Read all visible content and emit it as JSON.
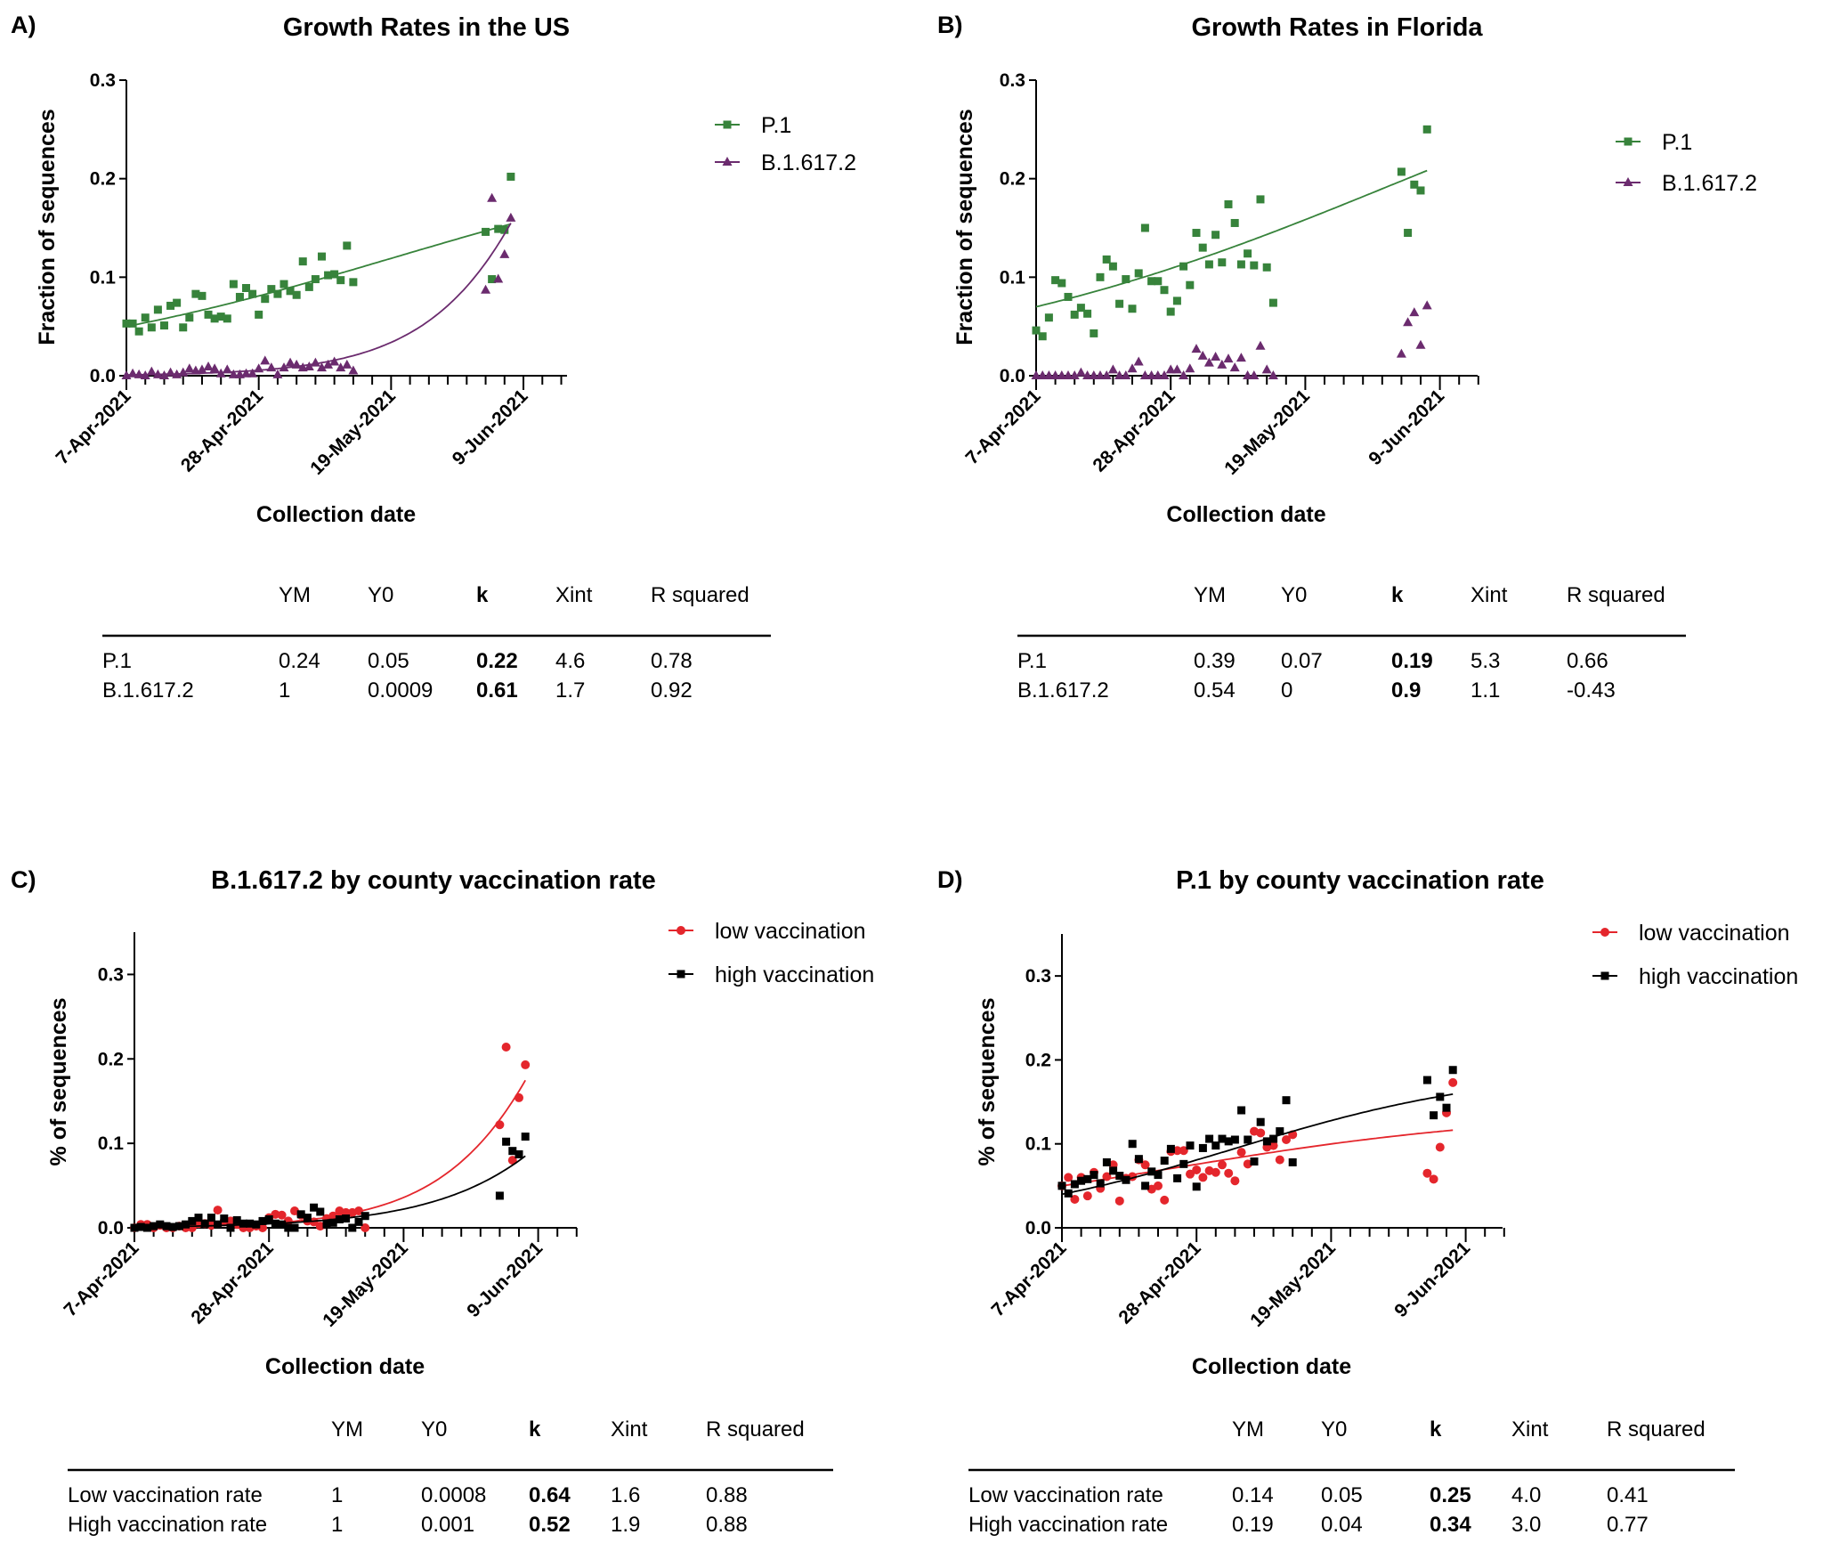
{
  "colors": {
    "P.1": "#37833b",
    "B.1.617.2": "#6b2b6e",
    "low vaccination": "#e4262c",
    "high vaccination": "#000000"
  },
  "chart_data": [
    {
      "panel_label": "A)",
      "title": "Growth Rates in the US",
      "type": "scatter",
      "xlabel": "Collection date",
      "ylabel": "Fraction of sequences",
      "x_ticks": [
        "7-Apr-2021",
        "28-Apr-2021",
        "19-May-2021",
        "9-Jun-2021"
      ],
      "y_ticks": [
        "0.0",
        "0.1",
        "0.2",
        "0.3"
      ],
      "ylim": [
        0,
        0.3
      ],
      "legend": "top-right",
      "x": [
        "2021-04-07",
        "2021-04-08",
        "2021-04-09",
        "2021-04-10",
        "2021-04-11",
        "2021-04-12",
        "2021-04-13",
        "2021-04-14",
        "2021-04-15",
        "2021-04-16",
        "2021-04-17",
        "2021-04-18",
        "2021-04-19",
        "2021-04-20",
        "2021-04-21",
        "2021-04-22",
        "2021-04-23",
        "2021-04-24",
        "2021-04-25",
        "2021-04-26",
        "2021-04-27",
        "2021-04-28",
        "2021-04-29",
        "2021-04-30",
        "2021-05-01",
        "2021-05-02",
        "2021-05-03",
        "2021-05-04",
        "2021-05-05",
        "2021-05-06",
        "2021-05-07",
        "2021-05-08",
        "2021-05-09",
        "2021-05-10",
        "2021-05-11",
        "2021-05-12",
        "2021-05-13",
        "2021-06-03",
        "2021-06-04",
        "2021-06-05",
        "2021-06-06",
        "2021-06-07"
      ],
      "series": [
        {
          "name": "P.1",
          "marker": "square",
          "fit_shown": true,
          "values": [
            0.053,
            0.053,
            0.045,
            0.059,
            0.049,
            0.067,
            0.051,
            0.071,
            0.074,
            0.049,
            0.059,
            0.083,
            0.081,
            0.062,
            0.058,
            0.06,
            0.058,
            0.093,
            0.08,
            0.089,
            0.083,
            0.062,
            0.078,
            0.088,
            0.083,
            0.093,
            0.086,
            0.082,
            0.116,
            0.09,
            0.098,
            0.121,
            0.102,
            0.103,
            0.097,
            0.132,
            0.095,
            0.146,
            0.098,
            0.149,
            0.148,
            0.202
          ]
        },
        {
          "name": "B.1.617.2",
          "marker": "triangle",
          "fit_shown": true,
          "values": [
            0,
            0.002,
            0.001,
            0,
            0.004,
            0.001,
            0,
            0.003,
            0.001,
            0.003,
            0.007,
            0.005,
            0.006,
            0.009,
            0.007,
            0.002,
            0.006,
            0.001,
            0.001,
            0.002,
            0.002,
            0.007,
            0.015,
            0.008,
            0.001,
            0.008,
            0.013,
            0.011,
            0.008,
            0.009,
            0.013,
            0.008,
            0.011,
            0.014,
            0.008,
            0.011,
            0.005,
            0.087,
            0.18,
            0.098,
            0.123,
            0.16
          ]
        }
      ],
      "table": {
        "headers": [
          "",
          "YM",
          "Y0",
          "k",
          "Xint",
          "R squared"
        ],
        "rows": [
          [
            "P.1",
            "0.24",
            "0.05",
            "0.22",
            "4.6",
            "0.78"
          ],
          [
            "B.1.617.2",
            "1",
            "0.0009",
            "0.61",
            "1.7",
            "0.92"
          ]
        ]
      }
    },
    {
      "panel_label": "B)",
      "title": "Growth Rates in Florida",
      "type": "scatter",
      "xlabel": "Collection date",
      "ylabel": "Fraction of sequences",
      "x_ticks": [
        "7-Apr-2021",
        "28-Apr-2021",
        "19-May-2021",
        "9-Jun-2021"
      ],
      "y_ticks": [
        "0.0",
        "0.1",
        "0.2",
        "0.3"
      ],
      "ylim": [
        0,
        0.3
      ],
      "legend": "top-right",
      "x": [
        "2021-04-07",
        "2021-04-08",
        "2021-04-09",
        "2021-04-10",
        "2021-04-11",
        "2021-04-12",
        "2021-04-13",
        "2021-04-14",
        "2021-04-15",
        "2021-04-16",
        "2021-04-17",
        "2021-04-18",
        "2021-04-19",
        "2021-04-20",
        "2021-04-21",
        "2021-04-22",
        "2021-04-23",
        "2021-04-24",
        "2021-04-25",
        "2021-04-26",
        "2021-04-27",
        "2021-04-28",
        "2021-04-29",
        "2021-04-30",
        "2021-05-01",
        "2021-05-02",
        "2021-05-03",
        "2021-05-04",
        "2021-05-05",
        "2021-05-06",
        "2021-05-07",
        "2021-05-08",
        "2021-05-09",
        "2021-05-10",
        "2021-05-11",
        "2021-05-12",
        "2021-05-13",
        "2021-05-14",
        "2021-06-03",
        "2021-06-04",
        "2021-06-05",
        "2021-06-06",
        "2021-06-07"
      ],
      "series": [
        {
          "name": "P.1",
          "marker": "square",
          "fit_shown": true,
          "values": [
            0.046,
            0.04,
            0.059,
            0.097,
            0.094,
            0.08,
            0.062,
            0.069,
            0.063,
            0.043,
            0.1,
            0.118,
            0.111,
            0.073,
            0.098,
            0.068,
            0.104,
            0.15,
            0.096,
            0.096,
            0.087,
            0.065,
            0.076,
            0.111,
            0.092,
            0.145,
            0.13,
            0.113,
            0.143,
            0.115,
            0.174,
            0.155,
            0.113,
            0.124,
            0.112,
            0.179,
            0.11,
            0.074,
            0.207,
            0.145,
            0.194,
            0.188,
            0.25
          ]
        },
        {
          "name": "B.1.617.2",
          "marker": "triangle",
          "fit_shown": false,
          "values": [
            0,
            0,
            0,
            0,
            0,
            0,
            0,
            0.003,
            0,
            0,
            0,
            0,
            0.006,
            0,
            0,
            0.007,
            0.014,
            0,
            0,
            0,
            0,
            0.006,
            0.006,
            0,
            0.007,
            0.027,
            0.02,
            0.013,
            0.019,
            0.011,
            0.017,
            0.008,
            0.018,
            0,
            0,
            0.03,
            0.006,
            0,
            0.022,
            0.054,
            0.064,
            0.031,
            0.071
          ]
        }
      ],
      "table": {
        "headers": [
          "",
          "YM",
          "Y0",
          "k",
          "Xint",
          "R squared"
        ],
        "rows": [
          [
            "P.1",
            "0.39",
            "0.07",
            "0.19",
            "5.3",
            "0.66"
          ],
          [
            "B.1.617.2",
            "0.54",
            "0",
            "0.9",
            "1.1",
            "-0.43"
          ]
        ]
      }
    },
    {
      "panel_label": "C)",
      "title": "B.1.617.2 by county vaccination rate",
      "type": "scatter",
      "xlabel": "Collection date",
      "ylabel": "% of sequences",
      "x_ticks": [
        "7-Apr-2021",
        "28-Apr-2021",
        "19-May-2021",
        "9-Jun-2021"
      ],
      "y_ticks": [
        "0.0",
        "0.1",
        "0.2",
        "0.3"
      ],
      "ylim": [
        0,
        0.35
      ],
      "legend": "top-right",
      "x": [
        "2021-04-07",
        "2021-04-08",
        "2021-04-09",
        "2021-04-10",
        "2021-04-11",
        "2021-04-12",
        "2021-04-13",
        "2021-04-14",
        "2021-04-15",
        "2021-04-16",
        "2021-04-17",
        "2021-04-18",
        "2021-04-19",
        "2021-04-20",
        "2021-04-21",
        "2021-04-22",
        "2021-04-23",
        "2021-04-24",
        "2021-04-25",
        "2021-04-26",
        "2021-04-27",
        "2021-04-28",
        "2021-04-29",
        "2021-04-30",
        "2021-05-01",
        "2021-05-02",
        "2021-05-03",
        "2021-05-04",
        "2021-05-05",
        "2021-05-06",
        "2021-05-07",
        "2021-05-08",
        "2021-05-09",
        "2021-05-10",
        "2021-05-11",
        "2021-05-12",
        "2021-05-13",
        "2021-06-03",
        "2021-06-04",
        "2021-06-05",
        "2021-06-06",
        "2021-06-07"
      ],
      "series": [
        {
          "name": "low vaccination",
          "marker": "circle",
          "fit_shown": true,
          "values": [
            0,
            0.004,
            0.004,
            0,
            0.003,
            0,
            0,
            0.002,
            0,
            0,
            0.005,
            0.005,
            0.003,
            0.021,
            0.008,
            0.008,
            0.004,
            0,
            0,
            0.002,
            0,
            0.012,
            0.016,
            0.015,
            0.008,
            0.02,
            0.015,
            0.008,
            0.007,
            0.002,
            0.011,
            0.014,
            0.02,
            0.018,
            0.018,
            0.02,
            0,
            0.122,
            0.214,
            0.08,
            0.154,
            0.193
          ]
        },
        {
          "name": "high vaccination",
          "marker": "square",
          "fit_shown": true,
          "values": [
            0,
            0.001,
            0,
            0.002,
            0.004,
            0.002,
            0.001,
            0.002,
            0.004,
            0.008,
            0.012,
            0.005,
            0.012,
            0.004,
            0.011,
            0,
            0.009,
            0.005,
            0.005,
            0.004,
            0.008,
            0.01,
            0.005,
            0.004,
            0,
            0,
            0.016,
            0.012,
            0.024,
            0.019,
            0.004,
            0.006,
            0.01,
            0.011,
            0,
            0.007,
            0.014,
            0.038,
            0.102,
            0.091,
            0.087,
            0.108
          ]
        }
      ],
      "table": {
        "headers": [
          "",
          "YM",
          "Y0",
          "k",
          "Xint",
          "R squared"
        ],
        "rows": [
          [
            "Low vaccination rate",
            "1",
            "0.0008",
            "0.64",
            "1.6",
            "0.88"
          ],
          [
            "High vaccination rate",
            "1",
            "0.001",
            "0.52",
            "1.9",
            "0.88"
          ]
        ]
      }
    },
    {
      "panel_label": "D)",
      "title": "P.1 by county vaccination rate",
      "type": "scatter",
      "xlabel": "Collection date",
      "ylabel": "% of sequences",
      "x_ticks": [
        "7-Apr-2021",
        "28-Apr-2021",
        "19-May-2021",
        "9-Jun-2021"
      ],
      "y_ticks": [
        "0.0",
        "0.1",
        "0.2",
        "0.3"
      ],
      "ylim": [
        0,
        0.35
      ],
      "legend": "top-right",
      "x": [
        "2021-04-07",
        "2021-04-08",
        "2021-04-09",
        "2021-04-10",
        "2021-04-11",
        "2021-04-12",
        "2021-04-13",
        "2021-04-14",
        "2021-04-15",
        "2021-04-16",
        "2021-04-17",
        "2021-04-18",
        "2021-04-19",
        "2021-04-20",
        "2021-04-21",
        "2021-04-22",
        "2021-04-23",
        "2021-04-24",
        "2021-04-25",
        "2021-04-26",
        "2021-04-27",
        "2021-04-28",
        "2021-04-29",
        "2021-04-30",
        "2021-05-01",
        "2021-05-02",
        "2021-05-03",
        "2021-05-04",
        "2021-05-05",
        "2021-05-06",
        "2021-05-07",
        "2021-05-08",
        "2021-05-09",
        "2021-05-10",
        "2021-05-11",
        "2021-05-12",
        "2021-05-13",
        "2021-06-03",
        "2021-06-04",
        "2021-06-05",
        "2021-06-06",
        "2021-06-07"
      ],
      "series": [
        {
          "name": "low vaccination",
          "marker": "circle",
          "fit_shown": true,
          "values": [
            0.05,
            0.06,
            0.034,
            0.06,
            0.038,
            0.066,
            0.047,
            0.061,
            0.075,
            0.032,
            0.059,
            0.061,
            0.081,
            0.075,
            0.046,
            0.05,
            0.033,
            0.091,
            0.092,
            0.092,
            0.064,
            0.069,
            0.06,
            0.068,
            0.066,
            0.075,
            0.065,
            0.056,
            0.09,
            0.076,
            0.115,
            0.113,
            0.096,
            0.098,
            0.081,
            0.105,
            0.111,
            0.065,
            0.058,
            0.096,
            0.137,
            0.173
          ]
        },
        {
          "name": "high vaccination",
          "marker": "square",
          "fit_shown": true,
          "values": [
            0.05,
            0.041,
            0.052,
            0.056,
            0.058,
            0.063,
            0.053,
            0.078,
            0.068,
            0.062,
            0.057,
            0.1,
            0.082,
            0.05,
            0.067,
            0.063,
            0.08,
            0.094,
            0.059,
            0.076,
            0.098,
            0.049,
            0.095,
            0.106,
            0.098,
            0.106,
            0.103,
            0.105,
            0.14,
            0.105,
            0.079,
            0.126,
            0.103,
            0.106,
            0.115,
            0.152,
            0.078,
            0.176,
            0.134,
            0.156,
            0.143,
            0.188
          ]
        }
      ],
      "table": {
        "headers": [
          "",
          "YM",
          "Y0",
          "k",
          "Xint",
          "R squared"
        ],
        "rows": [
          [
            "Low vaccination rate",
            "0.14",
            "0.05",
            "0.25",
            "4.0",
            "0.41"
          ],
          [
            "High vaccination rate",
            "0.19",
            "0.04",
            "0.34",
            "3.0",
            "0.77"
          ]
        ]
      }
    }
  ]
}
